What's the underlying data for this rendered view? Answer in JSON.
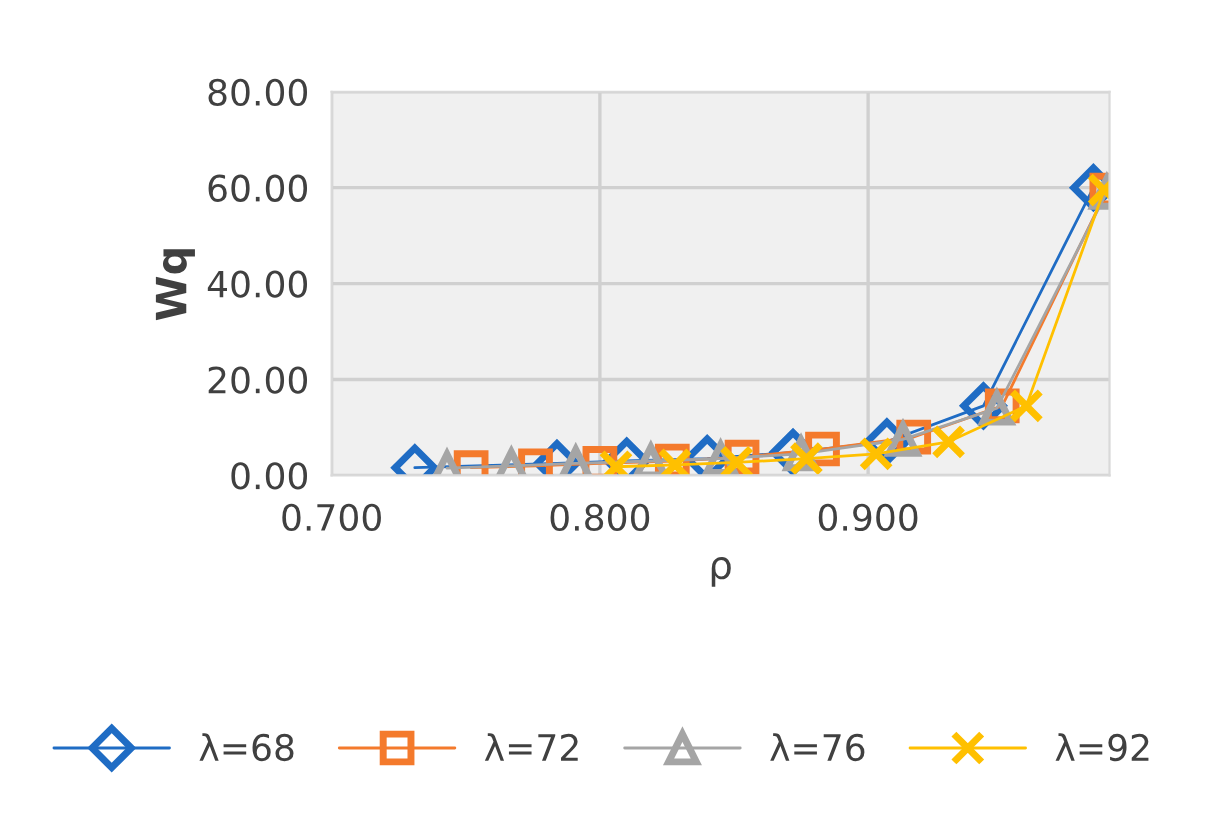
{
  "chart_data": {
    "type": "line",
    "xlabel": "ρ",
    "ylabel": "Wq",
    "xlim": [
      0.7,
      0.99
    ],
    "xticks": [
      {
        "value": 0.7,
        "label": "0.700"
      },
      {
        "value": 0.8,
        "label": "0.800"
      },
      {
        "value": 0.9,
        "label": "0.900"
      }
    ],
    "ylim": [
      0,
      80
    ],
    "yticks": [
      {
        "value": 0,
        "label": "0.00"
      },
      {
        "value": 20,
        "label": "20.00"
      },
      {
        "value": 40,
        "label": "40.00"
      },
      {
        "value": 60,
        "label": "60.00"
      },
      {
        "value": 80,
        "label": "80.00"
      }
    ],
    "grid": true,
    "legend": "bottom",
    "series": [
      {
        "name": "λ=68",
        "color": "#1f6cc4",
        "marker": "diamond",
        "x": [
          0.731,
          0.784,
          0.81,
          0.84,
          0.872,
          0.907,
          0.943,
          0.984
        ],
        "values": [
          1.6,
          2.5,
          3.0,
          3.5,
          4.8,
          7.0,
          14.5,
          60
        ]
      },
      {
        "name": "λ=72",
        "color": "#f47a2c",
        "marker": "square",
        "x": [
          0.752,
          0.776,
          0.8,
          0.827,
          0.853,
          0.883,
          0.917,
          0.95,
          0.989
        ],
        "values": [
          1.6,
          2.0,
          2.5,
          3.0,
          3.8,
          5.5,
          8.0,
          14.5,
          59.5
        ]
      },
      {
        "name": "λ=76",
        "color": "#a5a5a5",
        "marker": "triangle",
        "x": [
          0.743,
          0.767,
          0.791,
          0.819,
          0.845,
          0.875,
          0.913,
          0.948,
          0.989
        ],
        "values": [
          1.5,
          2.0,
          2.5,
          3.0,
          3.5,
          4.5,
          7.5,
          14,
          59
        ]
      },
      {
        "name": "λ=92",
        "color": "#ffc000",
        "marker": "cross",
        "x": [
          0.806,
          0.828,
          0.851,
          0.877,
          0.903,
          0.93,
          0.959,
          0.988
        ],
        "values": [
          1.8,
          2.2,
          2.7,
          3.5,
          4.5,
          7.0,
          14.5,
          59.5
        ]
      }
    ]
  }
}
